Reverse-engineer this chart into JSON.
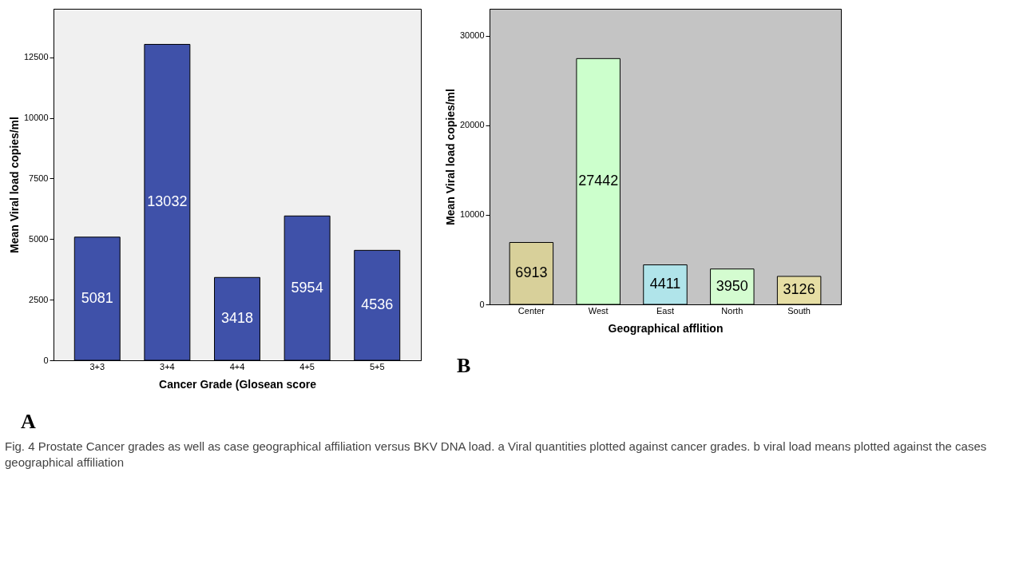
{
  "chart_data": [
    {
      "type": "bar",
      "categories": [
        "3+3",
        "3+4",
        "4+4",
        "4+5",
        "5+5"
      ],
      "series": [
        {
          "color": "#3f51a9",
          "values": [
            5081,
            13032,
            3418,
            5954,
            4536
          ]
        }
      ],
      "xlabel": "Cancer Grade (Glosean score",
      "ylabel": "Mean Viral load copies/ml",
      "ylim": [
        0,
        14500
      ],
      "yticks": [
        0,
        2500,
        5000,
        7500,
        10000,
        12500
      ],
      "data_labels": true,
      "annotations": [
        "A"
      ]
    },
    {
      "type": "bar",
      "categories": [
        "Center",
        "West",
        "East",
        "North",
        "South"
      ],
      "series": [
        {
          "colors": [
            "#d8d09a",
            "#ccffcc",
            "#b0e4ea",
            "#d4fcd0",
            "#e6dea4"
          ],
          "values": [
            6913,
            27442,
            4411,
            3950,
            3126
          ]
        }
      ],
      "xlabel": "Geographical afflition",
      "ylabel": "Mean Viral load copies/ml",
      "ylim": [
        0,
        33000
      ],
      "yticks": [
        0,
        10000,
        20000,
        30000
      ],
      "data_labels": true,
      "annotations": [
        "B",
        "Fig. 4 Prostate Cancer grades as well as case geographical affiliation versus BKV DNA load. a Viral quantities plotted against cancer grades. b viral load means plotted against the cases geographical affiliation"
      ]
    }
  ]
}
